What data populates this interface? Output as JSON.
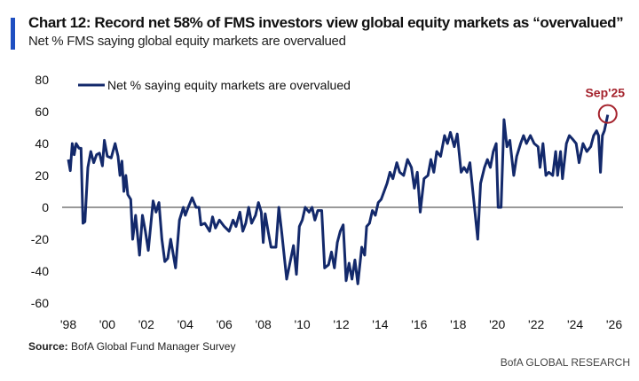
{
  "header": {
    "title": "Chart 12: Record net 58% of FMS investors view global equity markets as “overvalued”",
    "subtitle": "Net % FMS saying global equity markets are overvalued"
  },
  "footer": {
    "source_label": "Source:",
    "source_text": " BofA Global Fund Manager Survey",
    "brand": "BofA GLOBAL RESEARCH"
  },
  "chart_data": {
    "type": "line",
    "title": "Chart 12: Record net 58% of FMS investors view global equity markets as “overvalued”",
    "ylim": [
      -60,
      80
    ],
    "xlim": [
      1998,
      2026
    ],
    "yticks": [
      "80",
      "60",
      "40",
      "20",
      "0",
      "-20",
      "-40",
      "-60"
    ],
    "ytick_values": [
      80,
      60,
      40,
      20,
      0,
      -20,
      -40,
      -60
    ],
    "xticks": [
      "'98",
      "'00",
      "'02",
      "'04",
      "'06",
      "'08",
      "'10",
      "'12",
      "'14",
      "'16",
      "'18",
      "'20",
      "'22",
      "'24",
      "'26"
    ],
    "xtick_values": [
      1998,
      2000,
      2002,
      2004,
      2006,
      2008,
      2010,
      2012,
      2014,
      2016,
      2018,
      2020,
      2022,
      2024,
      2026
    ],
    "grid": false,
    "legend_placement": "top-left",
    "series": [
      {
        "name": "Net % saying equity markets are overvalued",
        "color": "#13296b",
        "points": [
          [
            1998.0,
            30
          ],
          [
            1998.1,
            23
          ],
          [
            1998.2,
            40
          ],
          [
            1998.3,
            33
          ],
          [
            1998.4,
            40
          ],
          [
            1998.55,
            37
          ],
          [
            1998.65,
            37
          ],
          [
            1998.75,
            -10
          ],
          [
            1998.85,
            -9
          ],
          [
            1999.0,
            25
          ],
          [
            1999.15,
            35
          ],
          [
            1999.3,
            28
          ],
          [
            1999.45,
            33
          ],
          [
            1999.6,
            34
          ],
          [
            1999.75,
            26
          ],
          [
            1999.85,
            42
          ],
          [
            2000.0,
            32
          ],
          [
            2000.2,
            31
          ],
          [
            2000.4,
            40
          ],
          [
            2000.55,
            32
          ],
          [
            2000.65,
            20
          ],
          [
            2000.75,
            29
          ],
          [
            2000.85,
            10
          ],
          [
            2000.95,
            20
          ],
          [
            2001.05,
            8
          ],
          [
            2001.2,
            5
          ],
          [
            2001.3,
            -20
          ],
          [
            2001.45,
            -5
          ],
          [
            2001.65,
            -30
          ],
          [
            2001.8,
            -5
          ],
          [
            2001.95,
            -15
          ],
          [
            2002.1,
            -27
          ],
          [
            2002.35,
            4
          ],
          [
            2002.5,
            -3
          ],
          [
            2002.65,
            3
          ],
          [
            2002.8,
            -20
          ],
          [
            2002.95,
            -34
          ],
          [
            2003.1,
            -32
          ],
          [
            2003.25,
            -20
          ],
          [
            2003.5,
            -38
          ],
          [
            2003.7,
            -8
          ],
          [
            2003.9,
            0
          ],
          [
            2004.0,
            -5
          ],
          [
            2004.15,
            0
          ],
          [
            2004.35,
            6
          ],
          [
            2004.55,
            0
          ],
          [
            2004.7,
            0
          ],
          [
            2004.8,
            -11
          ],
          [
            2005.0,
            -10
          ],
          [
            2005.25,
            -15
          ],
          [
            2005.4,
            -6
          ],
          [
            2005.55,
            -13
          ],
          [
            2005.75,
            -8
          ],
          [
            2006.0,
            -12
          ],
          [
            2006.25,
            -15
          ],
          [
            2006.45,
            -8
          ],
          [
            2006.6,
            -12
          ],
          [
            2006.8,
            -3
          ],
          [
            2006.95,
            -15
          ],
          [
            2007.1,
            -10
          ],
          [
            2007.25,
            0
          ],
          [
            2007.4,
            -10
          ],
          [
            2007.6,
            -5
          ],
          [
            2007.75,
            3
          ],
          [
            2007.9,
            -3
          ],
          [
            2008.0,
            -22
          ],
          [
            2008.1,
            -4
          ],
          [
            2008.25,
            -15
          ],
          [
            2008.4,
            -25
          ],
          [
            2008.65,
            -25
          ],
          [
            2008.8,
            0
          ],
          [
            2008.95,
            -16
          ],
          [
            2009.2,
            -45
          ],
          [
            2009.45,
            -30
          ],
          [
            2009.55,
            -24
          ],
          [
            2009.7,
            -42
          ],
          [
            2009.85,
            -12
          ],
          [
            2010.0,
            -8
          ],
          [
            2010.15,
            0
          ],
          [
            2010.35,
            -3
          ],
          [
            2010.5,
            0
          ],
          [
            2010.65,
            -8
          ],
          [
            2010.8,
            -2
          ],
          [
            2011.0,
            -2
          ],
          [
            2011.15,
            -38
          ],
          [
            2011.35,
            -36
          ],
          [
            2011.5,
            -28
          ],
          [
            2011.65,
            -38
          ],
          [
            2011.8,
            -22
          ],
          [
            2011.95,
            -15
          ],
          [
            2012.1,
            -11
          ],
          [
            2012.25,
            -46
          ],
          [
            2012.4,
            -35
          ],
          [
            2012.55,
            -45
          ],
          [
            2012.7,
            -33
          ],
          [
            2012.85,
            -48
          ],
          [
            2013.05,
            -25
          ],
          [
            2013.2,
            -30
          ],
          [
            2013.3,
            -12
          ],
          [
            2013.45,
            -10
          ],
          [
            2013.6,
            -2
          ],
          [
            2013.75,
            -5
          ],
          [
            2013.9,
            3
          ],
          [
            2014.05,
            5
          ],
          [
            2014.2,
            10
          ],
          [
            2014.35,
            15
          ],
          [
            2014.5,
            22
          ],
          [
            2014.65,
            18
          ],
          [
            2014.85,
            28
          ],
          [
            2015.0,
            22
          ],
          [
            2015.2,
            20
          ],
          [
            2015.4,
            30
          ],
          [
            2015.6,
            25
          ],
          [
            2015.75,
            12
          ],
          [
            2015.9,
            22
          ],
          [
            2016.05,
            -3
          ],
          [
            2016.25,
            18
          ],
          [
            2016.45,
            20
          ],
          [
            2016.6,
            30
          ],
          [
            2016.75,
            22
          ],
          [
            2016.9,
            35
          ],
          [
            2017.1,
            32
          ],
          [
            2017.3,
            45
          ],
          [
            2017.45,
            40
          ],
          [
            2017.6,
            47
          ],
          [
            2017.8,
            38
          ],
          [
            2017.95,
            46
          ],
          [
            2018.15,
            22
          ],
          [
            2018.3,
            25
          ],
          [
            2018.45,
            22
          ],
          [
            2018.6,
            28
          ],
          [
            2018.75,
            10
          ],
          [
            2019.0,
            -20
          ],
          [
            2019.15,
            15
          ],
          [
            2019.35,
            25
          ],
          [
            2019.5,
            30
          ],
          [
            2019.65,
            25
          ],
          [
            2019.8,
            35
          ],
          [
            2019.95,
            40
          ],
          [
            2020.05,
            0
          ],
          [
            2020.2,
            0
          ],
          [
            2020.35,
            55
          ],
          [
            2020.5,
            38
          ],
          [
            2020.65,
            42
          ],
          [
            2020.85,
            20
          ],
          [
            2021.0,
            32
          ],
          [
            2021.2,
            40
          ],
          [
            2021.35,
            45
          ],
          [
            2021.5,
            40
          ],
          [
            2021.7,
            45
          ],
          [
            2021.9,
            40
          ],
          [
            2022.1,
            38
          ],
          [
            2022.2,
            25
          ],
          [
            2022.35,
            40
          ],
          [
            2022.5,
            20
          ],
          [
            2022.65,
            22
          ],
          [
            2022.85,
            20
          ],
          [
            2023.0,
            35
          ],
          [
            2023.1,
            20
          ],
          [
            2023.25,
            35
          ],
          [
            2023.35,
            18
          ],
          [
            2023.55,
            40
          ],
          [
            2023.7,
            45
          ],
          [
            2023.85,
            43
          ],
          [
            2024.05,
            40
          ],
          [
            2024.2,
            28
          ],
          [
            2024.4,
            40
          ],
          [
            2024.6,
            35
          ],
          [
            2024.8,
            38
          ],
          [
            2024.95,
            45
          ],
          [
            2025.1,
            48
          ],
          [
            2025.2,
            45
          ],
          [
            2025.3,
            22
          ],
          [
            2025.4,
            45
          ],
          [
            2025.5,
            48
          ],
          [
            2025.67,
            58
          ]
        ]
      }
    ],
    "annotation": {
      "label": "Sep'25",
      "value": 58,
      "date": "Sep 2025",
      "color": "#a5232d"
    }
  }
}
